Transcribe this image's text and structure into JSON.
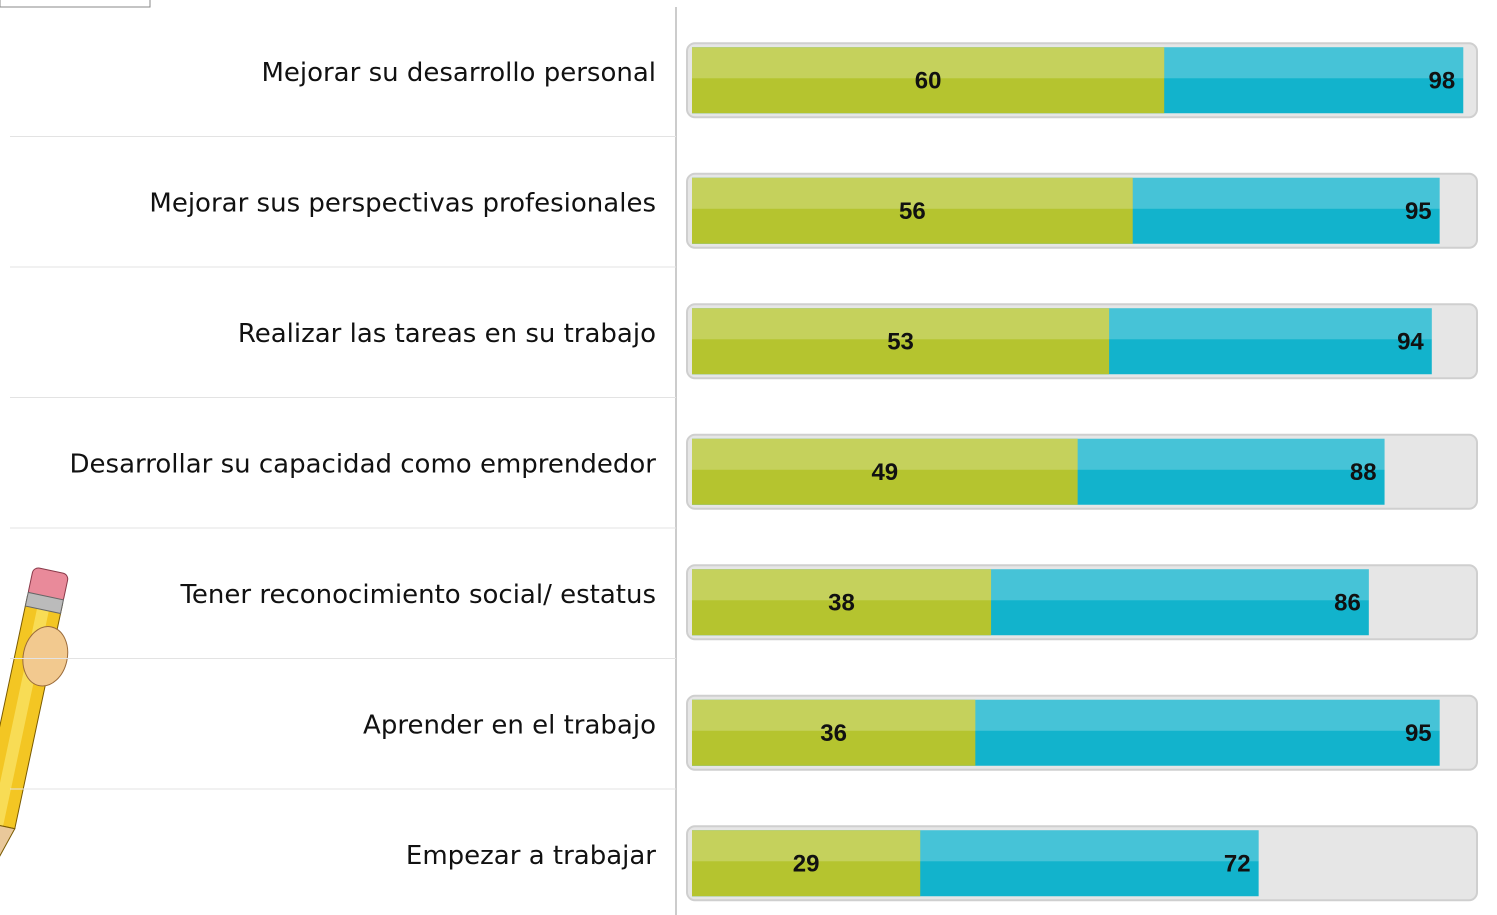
{
  "chart_data": {
    "type": "bar",
    "categories": [
      "Mejorar su desarrollo personal",
      "Mejorar sus perspectivas profesionales",
      "Realizar las tareas en su trabajo",
      "Desarrollar su capacidad como emprendedor",
      "Tener reconocimiento social/ estatus",
      "Aprender en el trabajo",
      "Empezar a trabajar"
    ],
    "series": [
      {
        "color": "#12b3cc",
        "values": [
          98,
          95,
          94,
          88,
          86,
          95,
          72
        ]
      },
      {
        "color": "#b5c42f",
        "values": [
          60,
          56,
          53,
          49,
          38,
          36,
          29
        ]
      }
    ],
    "xlim": [
      0,
      100
    ]
  }
}
